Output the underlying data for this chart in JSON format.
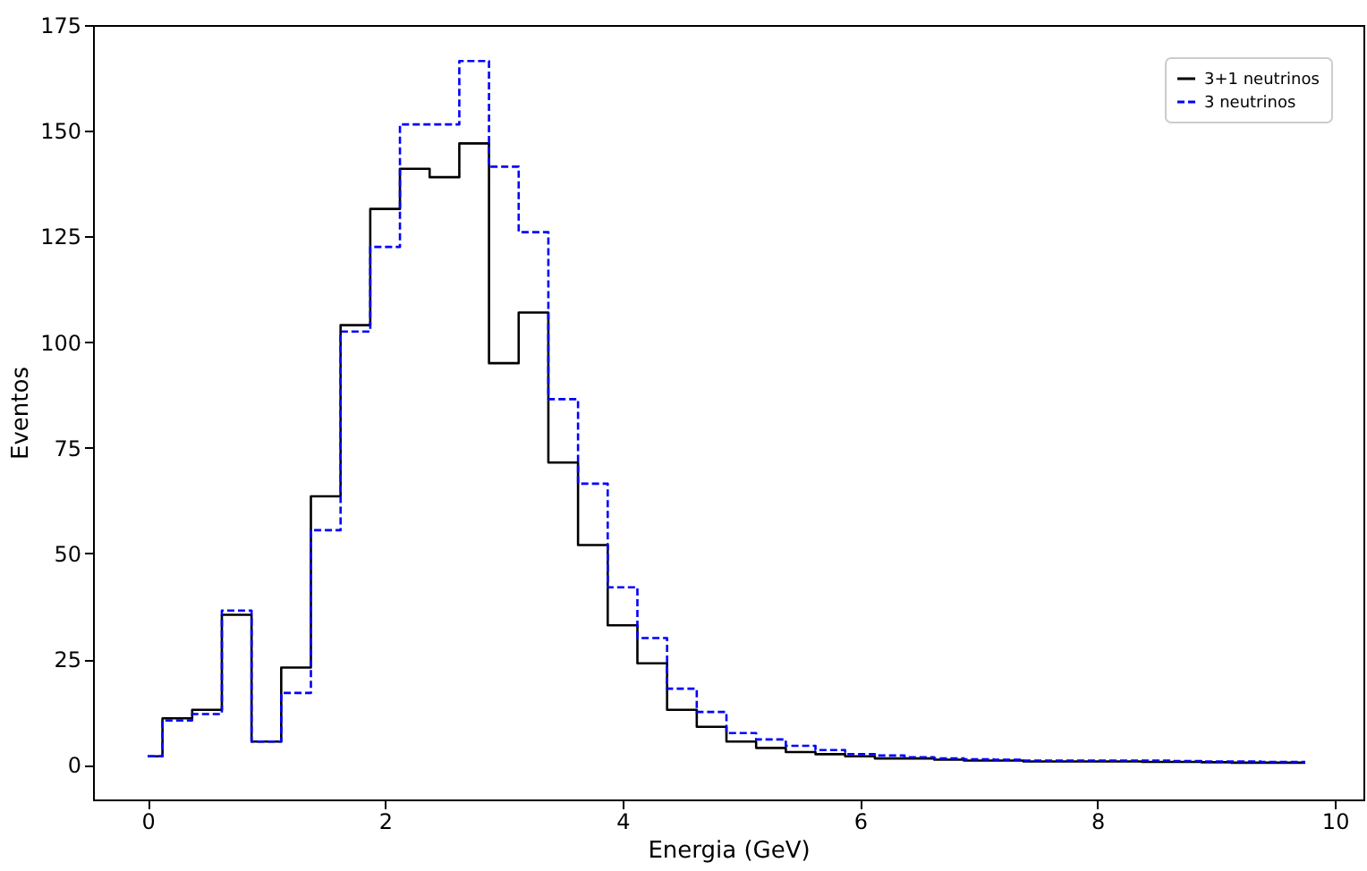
{
  "chart_data": {
    "type": "step",
    "xlabel": "Energia (GeV)",
    "ylabel": "Eventos",
    "x": [
      0,
      0.25,
      0.5,
      0.75,
      1.0,
      1.25,
      1.5,
      1.75,
      2.0,
      2.25,
      2.5,
      2.75,
      3.0,
      3.25,
      3.5,
      3.75,
      4.0,
      4.25,
      4.5,
      4.75,
      5.0,
      5.25,
      5.5,
      5.75,
      6.0,
      6.25,
      6.5,
      6.75,
      7.0,
      7.25,
      7.5,
      7.75,
      8.0,
      8.25,
      8.5,
      8.75,
      9.0,
      9.25,
      9.5,
      9.75
    ],
    "series": [
      {
        "name": "3+1 neutrinos",
        "color": "#000000",
        "line_style": "solid",
        "values": [
          2,
          11,
          13,
          35.5,
          5.5,
          23,
          63.5,
          104,
          131.5,
          141,
          139,
          147,
          95,
          107,
          71.5,
          52,
          33,
          24,
          13,
          9,
          5.5,
          4,
          3,
          2.5,
          2,
          1.5,
          1.5,
          1.2,
          1,
          1,
          0.8,
          0.8,
          0.8,
          0.8,
          0.7,
          0.7,
          0.6,
          0.5,
          0.5,
          0.5
        ]
      },
      {
        "name": "3 neutrinos",
        "color": "#0000ff",
        "line_style": "dashed",
        "values": [
          2,
          10.5,
          12,
          36.5,
          5.5,
          17,
          55.5,
          102.5,
          122.5,
          151.5,
          151.5,
          166.5,
          141.5,
          126,
          86.5,
          66.5,
          42,
          30,
          18,
          12.5,
          7.5,
          6,
          4.5,
          3.5,
          2.5,
          2.2,
          1.8,
          1.5,
          1.3,
          1.2,
          1,
          1,
          1,
          1,
          1,
          0.9,
          0.8,
          0.8,
          0.7,
          0.7
        ]
      }
    ],
    "xlim": [
      -0.46,
      10.24
    ],
    "xticks": [
      0,
      2,
      4,
      6,
      8,
      10
    ],
    "ylim": [
      -8.2,
      175
    ],
    "yticks": [
      0,
      25,
      50,
      75,
      100,
      125,
      150,
      175
    ],
    "grid": false,
    "legend": "top right"
  }
}
